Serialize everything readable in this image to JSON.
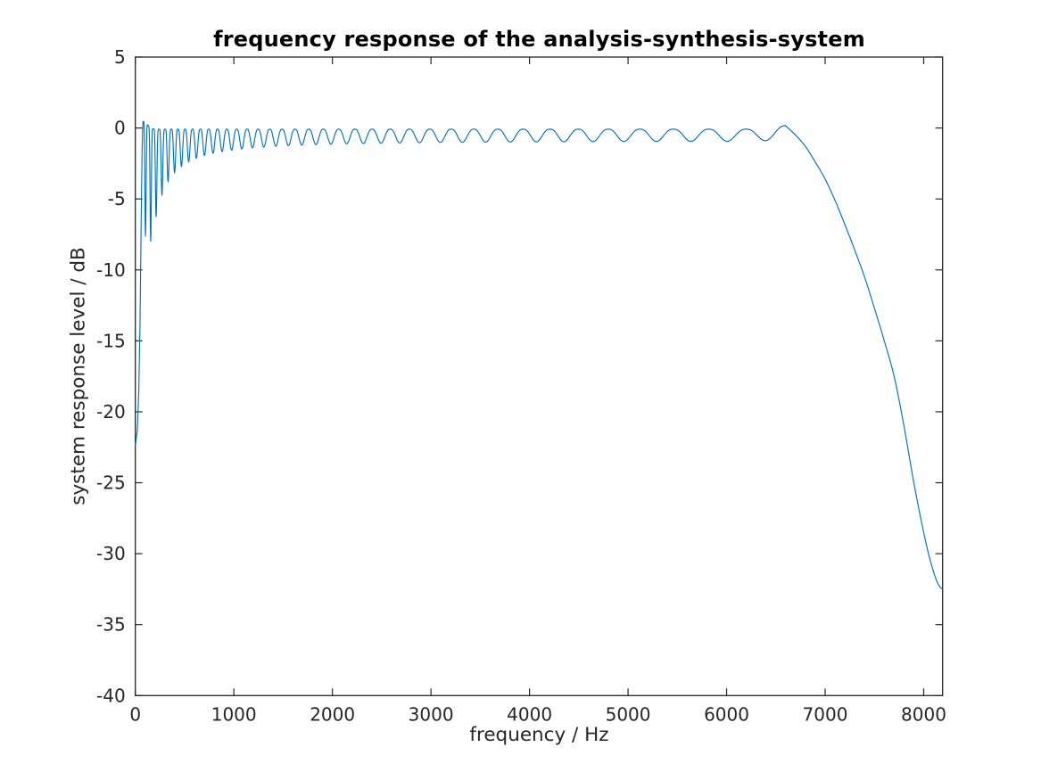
{
  "chart_data": {
    "type": "line",
    "title": "frequency response of the analysis-synthesis-system",
    "xlabel": "frequency / Hz",
    "ylabel": "system response level / dB",
    "xlim": [
      0,
      8192
    ],
    "ylim": [
      -40,
      5
    ],
    "xticks": [
      0,
      1000,
      2000,
      3000,
      4000,
      5000,
      6000,
      7000,
      8000
    ],
    "yticks": [
      5,
      0,
      -5,
      -10,
      -15,
      -20,
      -25,
      -30,
      -35,
      -40
    ],
    "grid": false,
    "box": true,
    "legend": null,
    "colors": {
      "line": "#0072BD",
      "axis": "#262626",
      "title": "#000000",
      "background": "#ffffff"
    },
    "key_readings": {
      "dc_level_db": -22.4,
      "first_peak": {
        "hz": 78,
        "db": 0.47
      },
      "early_null_levels_db": [
        -7.7,
        -8.0,
        -7.1,
        -6.3,
        -5.4,
        -4.6,
        -3.7,
        -3.0
      ],
      "passband_peak_level_db": -0.05,
      "passband_trough_level_db": -0.9,
      "last_passband_peak_hz": 6600,
      "level_at_7000_hz_db": -3.6,
      "level_at_7600_hz_db": -15.0,
      "end_point": {
        "hz": 8192,
        "db": -32.5
      }
    },
    "series": [
      {
        "name": "analysis-synthesis system response",
        "start_points": [
          [
            0,
            -22.4
          ],
          [
            20,
            -21.3
          ],
          [
            35,
            -18.6
          ],
          [
            47,
            -14.0
          ],
          [
            56,
            -8.8
          ],
          [
            63,
            -4.4
          ],
          [
            69,
            -1.6
          ],
          [
            74,
            -0.2
          ]
        ],
        "ripple": {
          "f_start": 78,
          "f_end": 6600,
          "cycles": 38,
          "period_hz": {
            "a": 45,
            "b": 0.055
          },
          "peak_level_db": -0.08,
          "trough_depth_db": {
            "floor": 0.8,
            "coeff": 5.8,
            "ref_hz": 200,
            "exponent": 1.35,
            "max": 8
          },
          "edge_boosts": [
            {
              "center_hz": 78,
              "sigma_hz": 60,
              "amp_db": 0.55
            },
            {
              "center_hz": 6600,
              "sigma_hz": 150,
              "amp_db": 0.25
            }
          ]
        },
        "rolloff_points": [
          [
            6600,
            0.15
          ],
          [
            6700,
            -0.5
          ],
          [
            6800,
            -1.3
          ],
          [
            6900,
            -2.4
          ],
          [
            7000,
            -3.6
          ],
          [
            7100,
            -5.1
          ],
          [
            7200,
            -6.8
          ],
          [
            7300,
            -8.6
          ],
          [
            7400,
            -10.5
          ],
          [
            7500,
            -12.7
          ],
          [
            7600,
            -15.0
          ],
          [
            7700,
            -17.5
          ],
          [
            7800,
            -21.0
          ],
          [
            7900,
            -25.0
          ],
          [
            8000,
            -28.5
          ],
          [
            8060,
            -30.3
          ],
          [
            8120,
            -31.7
          ],
          [
            8160,
            -32.3
          ],
          [
            8192,
            -32.5
          ]
        ]
      }
    ]
  }
}
